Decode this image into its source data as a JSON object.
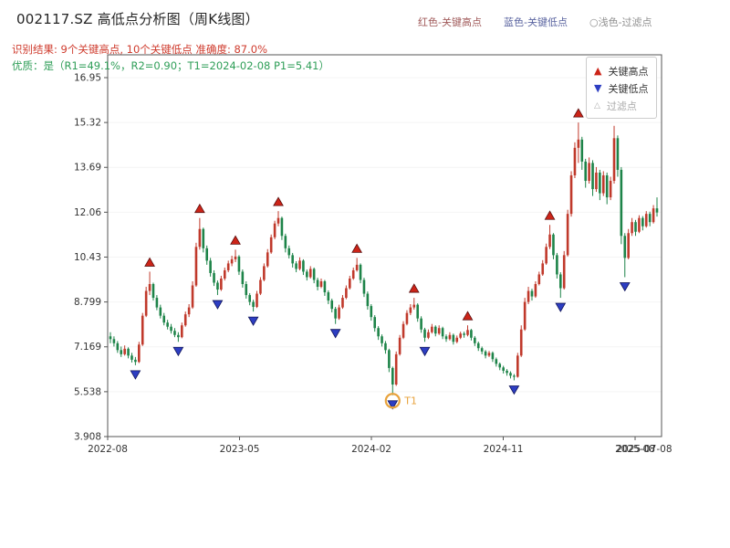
{
  "header": {
    "title": "002117.SZ 高低点分析图（周K线图）",
    "legend_top": [
      {
        "label": "红色-关键高点",
        "color": "#a05a5a"
      },
      {
        "label": "蓝色-关键低点",
        "color": "#5a64a0"
      },
      {
        "label": "○浅色-过滤点",
        "color": "#8f8f8f"
      }
    ],
    "result_line": "识别结果: 9个关键高点, 10个关键低点  准确度: 87.0%",
    "quality_line": "优质：是（R1=49.1%，R2=0.90；T1=2024-02-08 P1=5.41）"
  },
  "plot_legend": {
    "high_label": "关键高点",
    "low_label": "关键低点",
    "filter_label": "过滤点"
  },
  "chart_data": {
    "type": "candlestick",
    "title": "002117.SZ 高低点分析图（周K线图）",
    "symbol": "002117.SZ",
    "period": "周K线",
    "key_high_count": 9,
    "key_low_count": 10,
    "accuracy_pct": 87.0,
    "r1_pct": 49.1,
    "r2": 0.9,
    "t1_date": "2024-02-08",
    "p1": 5.41,
    "ylim": [
      3.908,
      17.78
    ],
    "y_ticks": [
      {
        "value": 3.908,
        "label": "3.908"
      },
      {
        "value": 5.538,
        "label": "5.538"
      },
      {
        "value": 7.169,
        "label": "7.169"
      },
      {
        "value": 8.799,
        "label": "8.799"
      },
      {
        "value": 10.43,
        "label": "10.43"
      },
      {
        "value": 12.06,
        "label": "12.06"
      },
      {
        "value": 13.69,
        "label": "13.69"
      },
      {
        "value": 15.32,
        "label": "15.32"
      },
      {
        "value": 16.95,
        "label": "16.95"
      }
    ],
    "x_ticks": [
      "2022-08",
      "2023-05",
      "2024-02",
      "2024-11",
      "2025-08"
    ],
    "x_extra_label": "2025-07-08",
    "colors": {
      "up": "#c0392b",
      "down": "#1e8449",
      "high_marker": "#cc2418",
      "high_marker_edge": "#5a0f0f",
      "low_marker": "#2d3ec2",
      "low_marker_edge": "#10145a",
      "t1": "#e8a33d",
      "axis": "#555555"
    },
    "candles": [
      [
        "2022-08-05",
        7.55,
        7.7,
        7.3,
        7.45
      ],
      [
        "2022-08-12",
        7.45,
        7.55,
        7.18,
        7.3
      ],
      [
        "2022-08-19",
        7.3,
        7.38,
        6.95,
        7.05
      ],
      [
        "2022-08-26",
        7.05,
        7.18,
        6.8,
        6.9
      ],
      [
        "2022-09-02",
        6.9,
        7.22,
        6.85,
        7.1
      ],
      [
        "2022-09-09",
        7.1,
        7.15,
        6.75,
        6.85
      ],
      [
        "2022-09-16",
        6.85,
        6.95,
        6.6,
        6.7
      ],
      [
        "2022-09-23",
        6.7,
        6.8,
        6.5,
        6.62
      ],
      [
        "2022-09-30",
        6.62,
        7.35,
        6.58,
        7.25
      ],
      [
        "2022-10-07",
        7.25,
        8.4,
        7.2,
        8.3
      ],
      [
        "2022-10-14",
        8.3,
        9.35,
        8.25,
        9.2
      ],
      [
        "2022-10-21",
        9.2,
        9.9,
        9.05,
        9.45
      ],
      [
        "2022-10-28",
        9.45,
        9.5,
        8.85,
        8.95
      ],
      [
        "2022-11-04",
        8.95,
        9.05,
        8.5,
        8.6
      ],
      [
        "2022-11-11",
        8.6,
        8.7,
        8.2,
        8.3
      ],
      [
        "2022-11-18",
        8.3,
        8.4,
        7.95,
        8.05
      ],
      [
        "2022-11-25",
        8.05,
        8.15,
        7.8,
        7.9
      ],
      [
        "2022-12-02",
        7.9,
        8.0,
        7.65,
        7.75
      ],
      [
        "2022-12-09",
        7.75,
        7.85,
        7.52,
        7.6
      ],
      [
        "2022-12-16",
        7.6,
        7.7,
        7.35,
        7.52
      ],
      [
        "2022-12-23",
        7.52,
        8.05,
        7.48,
        7.95
      ],
      [
        "2022-12-30",
        7.95,
        8.45,
        7.9,
        8.35
      ],
      [
        "2023-01-06",
        8.35,
        8.72,
        8.25,
        8.6
      ],
      [
        "2023-01-13",
        8.6,
        9.55,
        8.55,
        9.4
      ],
      [
        "2023-01-20",
        9.4,
        10.95,
        9.35,
        10.8
      ],
      [
        "2023-01-27",
        10.8,
        11.85,
        10.7,
        11.45
      ],
      [
        "2023-02-03",
        11.45,
        11.5,
        10.6,
        10.75
      ],
      [
        "2023-02-10",
        10.75,
        10.85,
        10.15,
        10.3
      ],
      [
        "2023-02-17",
        10.3,
        10.4,
        9.72,
        9.85
      ],
      [
        "2023-02-24",
        9.85,
        9.95,
        9.38,
        9.5
      ],
      [
        "2023-03-03",
        9.5,
        9.58,
        9.05,
        9.25
      ],
      [
        "2023-03-10",
        9.25,
        9.75,
        9.2,
        9.65
      ],
      [
        "2023-03-17",
        9.65,
        10.05,
        9.58,
        9.95
      ],
      [
        "2023-03-24",
        9.95,
        10.3,
        9.88,
        10.2
      ],
      [
        "2023-03-31",
        10.2,
        10.48,
        10.1,
        10.35
      ],
      [
        "2023-04-07",
        10.35,
        10.7,
        10.25,
        10.45
      ],
      [
        "2023-04-14",
        10.45,
        10.5,
        9.78,
        9.9
      ],
      [
        "2023-04-21",
        9.9,
        9.98,
        9.32,
        9.45
      ],
      [
        "2023-04-28",
        9.45,
        9.55,
        8.92,
        9.05
      ],
      [
        "2023-05-05",
        9.05,
        9.12,
        8.68,
        8.8
      ],
      [
        "2023-05-12",
        8.8,
        8.88,
        8.45,
        8.62
      ],
      [
        "2023-05-19",
        8.62,
        9.2,
        8.58,
        9.1
      ],
      [
        "2023-05-26",
        9.1,
        9.7,
        9.05,
        9.6
      ],
      [
        "2023-06-02",
        9.6,
        10.2,
        9.55,
        10.1
      ],
      [
        "2023-06-09",
        10.1,
        10.72,
        10.05,
        10.6
      ],
      [
        "2023-06-16",
        10.6,
        11.25,
        10.55,
        11.15
      ],
      [
        "2023-06-23",
        11.15,
        11.75,
        11.08,
        11.65
      ],
      [
        "2023-06-30",
        11.65,
        12.1,
        11.55,
        11.85
      ],
      [
        "2023-07-07",
        11.85,
        11.9,
        11.05,
        11.2
      ],
      [
        "2023-07-14",
        11.2,
        11.28,
        10.6,
        10.75
      ],
      [
        "2023-07-21",
        10.75,
        10.85,
        10.38,
        10.5
      ],
      [
        "2023-07-28",
        10.5,
        10.58,
        10.05,
        10.2
      ],
      [
        "2023-08-04",
        10.2,
        10.28,
        9.88,
        10.0
      ],
      [
        "2023-08-11",
        10.0,
        10.42,
        9.95,
        10.3
      ],
      [
        "2023-08-18",
        10.3,
        10.35,
        9.78,
        9.9
      ],
      [
        "2023-08-25",
        9.9,
        9.98,
        9.58,
        9.7
      ],
      [
        "2023-09-01",
        9.7,
        10.1,
        9.65,
        10.0
      ],
      [
        "2023-09-08",
        10.0,
        10.05,
        9.48,
        9.6
      ],
      [
        "2023-09-15",
        9.6,
        9.68,
        9.22,
        9.35
      ],
      [
        "2023-09-22",
        9.35,
        9.65,
        9.3,
        9.55
      ],
      [
        "2023-09-29",
        9.55,
        9.6,
        9.02,
        9.15
      ],
      [
        "2023-10-06",
        9.15,
        9.22,
        8.72,
        8.85
      ],
      [
        "2023-10-13",
        8.85,
        8.92,
        8.42,
        8.55
      ],
      [
        "2023-10-20",
        8.55,
        8.62,
        8.0,
        8.2
      ],
      [
        "2023-10-27",
        8.2,
        8.7,
        8.15,
        8.6
      ],
      [
        "2023-11-03",
        8.6,
        9.05,
        8.55,
        8.95
      ],
      [
        "2023-11-10",
        8.95,
        9.4,
        8.9,
        9.3
      ],
      [
        "2023-11-17",
        9.3,
        9.75,
        9.25,
        9.65
      ],
      [
        "2023-11-24",
        9.65,
        10.05,
        9.6,
        9.95
      ],
      [
        "2023-12-01",
        9.95,
        10.4,
        9.9,
        10.15
      ],
      [
        "2023-12-08",
        10.15,
        10.2,
        9.48,
        9.6
      ],
      [
        "2023-12-15",
        9.6,
        9.68,
        8.98,
        9.1
      ],
      [
        "2023-12-22",
        9.1,
        9.18,
        8.52,
        8.65
      ],
      [
        "2023-12-29",
        8.65,
        8.72,
        8.12,
        8.25
      ],
      [
        "2024-01-05",
        8.25,
        8.32,
        7.72,
        7.85
      ],
      [
        "2024-01-12",
        7.85,
        7.92,
        7.42,
        7.55
      ],
      [
        "2024-01-19",
        7.55,
        7.62,
        7.18,
        7.3
      ],
      [
        "2024-01-26",
        7.3,
        7.38,
        6.92,
        7.05
      ],
      [
        "2024-02-02",
        7.05,
        7.1,
        6.25,
        6.4
      ],
      [
        "2024-02-08",
        6.4,
        6.45,
        5.41,
        5.8
      ],
      [
        "2024-02-16",
        5.8,
        7.0,
        5.75,
        6.9
      ],
      [
        "2024-02-23",
        6.9,
        7.6,
        6.85,
        7.5
      ],
      [
        "2024-03-01",
        7.5,
        8.1,
        7.45,
        8.0
      ],
      [
        "2024-03-08",
        8.0,
        8.5,
        7.95,
        8.4
      ],
      [
        "2024-03-15",
        8.4,
        8.72,
        8.32,
        8.6
      ],
      [
        "2024-03-22",
        8.6,
        8.95,
        8.52,
        8.7
      ],
      [
        "2024-03-29",
        8.7,
        8.75,
        8.08,
        8.2
      ],
      [
        "2024-04-05",
        8.2,
        8.28,
        7.68,
        7.8
      ],
      [
        "2024-04-12",
        7.8,
        7.86,
        7.35,
        7.5
      ],
      [
        "2024-04-19",
        7.5,
        7.8,
        7.45,
        7.7
      ],
      [
        "2024-04-26",
        7.7,
        8.0,
        7.65,
        7.9
      ],
      [
        "2024-05-03",
        7.9,
        7.95,
        7.55,
        7.65
      ],
      [
        "2024-05-10",
        7.65,
        7.95,
        7.6,
        7.85
      ],
      [
        "2024-05-17",
        7.85,
        7.9,
        7.45,
        7.55
      ],
      [
        "2024-05-24",
        7.55,
        7.62,
        7.35,
        7.45
      ],
      [
        "2024-05-31",
        7.45,
        7.7,
        7.4,
        7.6
      ],
      [
        "2024-06-07",
        7.6,
        7.65,
        7.25,
        7.35
      ],
      [
        "2024-06-14",
        7.35,
        7.58,
        7.3,
        7.5
      ],
      [
        "2024-06-21",
        7.5,
        7.72,
        7.45,
        7.65
      ],
      [
        "2024-06-28",
        7.65,
        7.72,
        7.5,
        7.6
      ],
      [
        "2024-07-05",
        7.6,
        7.95,
        7.55,
        7.78
      ],
      [
        "2024-07-12",
        7.78,
        7.82,
        7.4,
        7.5
      ],
      [
        "2024-07-19",
        7.5,
        7.56,
        7.2,
        7.3
      ],
      [
        "2024-07-26",
        7.3,
        7.36,
        7.02,
        7.12
      ],
      [
        "2024-08-02",
        7.12,
        7.18,
        6.9,
        7.0
      ],
      [
        "2024-08-09",
        7.0,
        7.05,
        6.75,
        6.85
      ],
      [
        "2024-08-16",
        6.85,
        7.02,
        6.8,
        6.95
      ],
      [
        "2024-08-23",
        6.95,
        7.0,
        6.62,
        6.72
      ],
      [
        "2024-08-30",
        6.72,
        6.78,
        6.45,
        6.55
      ],
      [
        "2024-09-06",
        6.55,
        6.6,
        6.32,
        6.42
      ],
      [
        "2024-09-13",
        6.42,
        6.48,
        6.2,
        6.3
      ],
      [
        "2024-09-20",
        6.3,
        6.36,
        6.12,
        6.22
      ],
      [
        "2024-09-27",
        6.22,
        6.28,
        6.02,
        6.12
      ],
      [
        "2024-10-04",
        6.12,
        6.18,
        5.95,
        6.08
      ],
      [
        "2024-10-11",
        6.08,
        6.95,
        6.05,
        6.85
      ],
      [
        "2024-10-18",
        6.85,
        7.95,
        6.8,
        7.8
      ],
      [
        "2024-10-25",
        7.8,
        8.95,
        7.75,
        8.8
      ],
      [
        "2024-11-01",
        8.8,
        9.35,
        8.72,
        9.2
      ],
      [
        "2024-11-08",
        9.2,
        9.28,
        8.85,
        9.0
      ],
      [
        "2024-11-15",
        9.0,
        9.55,
        8.95,
        9.45
      ],
      [
        "2024-11-22",
        9.45,
        9.9,
        9.4,
        9.8
      ],
      [
        "2024-11-29",
        9.8,
        10.32,
        9.75,
        10.2
      ],
      [
        "2024-12-06",
        10.2,
        10.92,
        10.15,
        10.8
      ],
      [
        "2024-12-13",
        10.8,
        11.6,
        10.72,
        11.25
      ],
      [
        "2024-12-20",
        11.25,
        11.3,
        10.35,
        10.5
      ],
      [
        "2024-12-27",
        10.5,
        10.58,
        9.65,
        9.8
      ],
      [
        "2025-01-03",
        9.8,
        9.88,
        8.95,
        9.3
      ],
      [
        "2025-01-10",
        9.3,
        10.65,
        9.25,
        10.5
      ],
      [
        "2025-01-17",
        10.5,
        12.15,
        10.45,
        12.0
      ],
      [
        "2025-01-24",
        12.0,
        13.55,
        11.9,
        13.4
      ],
      [
        "2025-01-31",
        13.4,
        14.6,
        13.3,
        14.4
      ],
      [
        "2025-02-07",
        14.4,
        15.32,
        13.85,
        14.7
      ],
      [
        "2025-02-14",
        14.7,
        14.8,
        13.6,
        13.9
      ],
      [
        "2025-02-21",
        13.9,
        14.0,
        12.95,
        13.2
      ],
      [
        "2025-02-28",
        13.2,
        14.05,
        13.1,
        13.85
      ],
      [
        "2025-03-07",
        13.85,
        13.95,
        12.65,
        12.9
      ],
      [
        "2025-03-14",
        12.9,
        13.7,
        12.8,
        13.5
      ],
      [
        "2025-03-21",
        13.5,
        13.6,
        12.5,
        12.75
      ],
      [
        "2025-03-28",
        12.75,
        13.55,
        12.65,
        13.4
      ],
      [
        "2025-04-04",
        13.4,
        13.5,
        12.35,
        12.6
      ],
      [
        "2025-04-11",
        12.6,
        13.35,
        12.5,
        13.2
      ],
      [
        "2025-04-18",
        13.2,
        15.2,
        13.1,
        14.75
      ],
      [
        "2025-04-25",
        14.75,
        14.85,
        13.35,
        13.6
      ],
      [
        "2025-05-02",
        13.6,
        13.7,
        10.9,
        11.2
      ],
      [
        "2025-05-09",
        11.2,
        11.3,
        9.7,
        10.4
      ],
      [
        "2025-05-16",
        10.4,
        11.45,
        10.35,
        11.3
      ],
      [
        "2025-05-23",
        11.3,
        11.85,
        11.2,
        11.7
      ],
      [
        "2025-05-30",
        11.7,
        11.78,
        11.2,
        11.35
      ],
      [
        "2025-06-06",
        11.35,
        11.95,
        11.3,
        11.85
      ],
      [
        "2025-06-13",
        11.85,
        11.92,
        11.4,
        11.55
      ],
      [
        "2025-06-20",
        11.55,
        12.1,
        11.5,
        12.0
      ],
      [
        "2025-06-27",
        12.0,
        12.08,
        11.55,
        11.7
      ],
      [
        "2025-07-04",
        11.7,
        12.32,
        11.65,
        12.2
      ],
      [
        "2025-07-08",
        12.2,
        12.6,
        11.9,
        12.05
      ]
    ],
    "key_highs": [
      {
        "week": 11,
        "date": "2022-10-21",
        "price": 9.9
      },
      {
        "week": 25,
        "date": "2023-01-27",
        "price": 11.85
      },
      {
        "week": 35,
        "date": "2023-04-07",
        "price": 10.7
      },
      {
        "week": 47,
        "date": "2023-06-30",
        "price": 12.1
      },
      {
        "week": 69,
        "date": "2023-12-01",
        "price": 10.4
      },
      {
        "week": 85,
        "date": "2024-03-22",
        "price": 8.95
      },
      {
        "week": 100,
        "date": "2024-07-05",
        "price": 7.95
      },
      {
        "week": 123,
        "date": "2024-12-13",
        "price": 11.6
      },
      {
        "week": 131,
        "date": "2025-02-07",
        "price": 15.32
      }
    ],
    "key_lows": [
      {
        "week": 7,
        "date": "2022-09-23",
        "price": 6.5
      },
      {
        "week": 19,
        "date": "2022-12-16",
        "price": 7.35
      },
      {
        "week": 30,
        "date": "2023-03-03",
        "price": 9.05
      },
      {
        "week": 40,
        "date": "2023-05-12",
        "price": 8.45
      },
      {
        "week": 63,
        "date": "2023-10-20",
        "price": 8.0
      },
      {
        "week": 79,
        "date": "2024-02-08",
        "price": 5.41
      },
      {
        "week": 88,
        "date": "2024-04-12",
        "price": 7.35
      },
      {
        "week": 113,
        "date": "2024-10-04",
        "price": 5.95
      },
      {
        "week": 126,
        "date": "2025-01-03",
        "price": 8.95
      },
      {
        "week": 144,
        "date": "2025-05-09",
        "price": 9.7
      }
    ],
    "t1": {
      "label": "T1",
      "week": 79,
      "price": 5.41,
      "date": "2024-02-08"
    },
    "legend": [
      {
        "label": "关键高点",
        "marker": "up-triangle",
        "color": "#cc2418"
      },
      {
        "label": "关键低点",
        "marker": "down-triangle",
        "color": "#2d3ec2"
      },
      {
        "label": "过滤点",
        "marker": "open-triangle",
        "color": "#b0b0b0"
      }
    ]
  }
}
